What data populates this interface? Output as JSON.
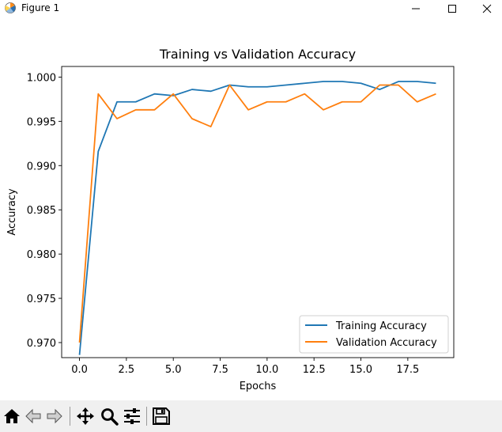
{
  "window": {
    "title": "Figure 1",
    "icon": "matplotlib-icon",
    "controls": [
      "minimize-icon",
      "maximize-icon",
      "close-icon"
    ]
  },
  "toolbar": {
    "buttons": [
      "home-icon",
      "back-icon",
      "forward-icon",
      "pan-icon",
      "zoom-icon",
      "configure-subplots-icon",
      "save-icon"
    ]
  },
  "chart_data": {
    "type": "line",
    "title": "Training vs Validation Accuracy",
    "xlabel": "Epochs",
    "ylabel": "Accuracy",
    "xlim": [
      -0.95,
      19.95
    ],
    "ylim": [
      0.9683,
      1.0012
    ],
    "xticks": [
      0.0,
      2.5,
      5.0,
      7.5,
      10.0,
      12.5,
      15.0,
      17.5
    ],
    "xtick_labels": [
      "0.0",
      "2.5",
      "5.0",
      "7.5",
      "10.0",
      "12.5",
      "15.0",
      "17.5"
    ],
    "yticks": [
      0.97,
      0.975,
      0.98,
      0.985,
      0.99,
      0.995,
      1.0
    ],
    "ytick_labels": [
      "0.970",
      "0.975",
      "0.980",
      "0.985",
      "0.990",
      "0.995",
      "1.000"
    ],
    "grid": false,
    "legend_position": "lower-right",
    "x": [
      0,
      1,
      2,
      3,
      4,
      5,
      6,
      7,
      8,
      9,
      10,
      11,
      12,
      13,
      14,
      15,
      16,
      17,
      18,
      19
    ],
    "series": [
      {
        "name": "Training Accuracy",
        "color": "#1f77b4",
        "values": [
          0.9686,
          0.9916,
          0.9972,
          0.9972,
          0.9981,
          0.9979,
          0.9986,
          0.9984,
          0.9991,
          0.9989,
          0.9989,
          0.9991,
          0.9993,
          0.9995,
          0.9995,
          0.9993,
          0.9986,
          0.9995,
          0.9995,
          0.9993
        ]
      },
      {
        "name": "Validation Accuracy",
        "color": "#ff7f0e",
        "values": [
          0.97,
          0.9981,
          0.9953,
          0.9963,
          0.9963,
          0.9981,
          0.9953,
          0.9944,
          0.9991,
          0.9963,
          0.9972,
          0.9972,
          0.9981,
          0.9963,
          0.9972,
          0.9972,
          0.9991,
          0.9991,
          0.9972,
          0.9981
        ]
      }
    ]
  }
}
